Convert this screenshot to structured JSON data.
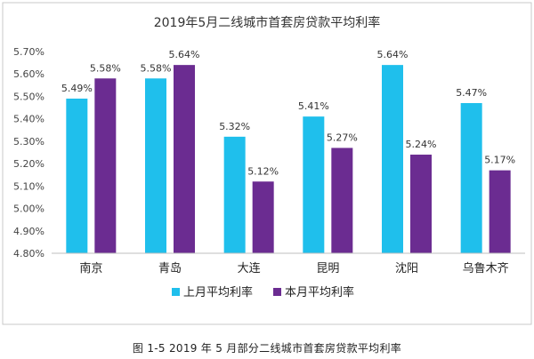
{
  "caption": "图 1-5 2019 年 5 月部分二线城市首套房贷款平均利率",
  "chart_data": {
    "type": "bar",
    "title": "2019年5月二线城市首套房贷款平均利率",
    "xlabel": "",
    "ylabel": "",
    "categories": [
      "南京",
      "青岛",
      "大连",
      "昆明",
      "沈阳",
      "乌鲁木齐"
    ],
    "series": [
      {
        "name": "上月平均利率",
        "values": [
          5.49,
          5.58,
          5.32,
          5.41,
          5.64,
          5.47
        ],
        "labels": [
          "5.49%",
          "5.58%",
          "5.32%",
          "5.41%",
          "5.64%",
          "5.47%"
        ],
        "color": "#1fbfec"
      },
      {
        "name": "本月平均利率",
        "values": [
          5.58,
          5.64,
          5.12,
          5.27,
          5.24,
          5.17
        ],
        "labels": [
          "5.58%",
          "5.64%",
          "5.12%",
          "5.27%",
          "5.24%",
          "5.17%"
        ],
        "color": "#6b2c91"
      }
    ],
    "yticks": [
      "4.80%",
      "4.90%",
      "5.00%",
      "5.10%",
      "5.20%",
      "5.30%",
      "5.40%",
      "5.50%",
      "5.60%",
      "5.70%"
    ],
    "ylim": [
      4.8,
      5.7
    ],
    "grid": false,
    "legend_position": "bottom"
  }
}
